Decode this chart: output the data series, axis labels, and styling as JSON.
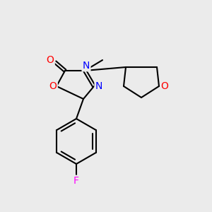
{
  "bg_color": "#ebebeb",
  "bond_color": "#000000",
  "atom_colors": {
    "O": "#ff0000",
    "N": "#0000ff",
    "F": "#ff00ff",
    "C": "#000000"
  },
  "font_size": 9,
  "lw": 1.5
}
